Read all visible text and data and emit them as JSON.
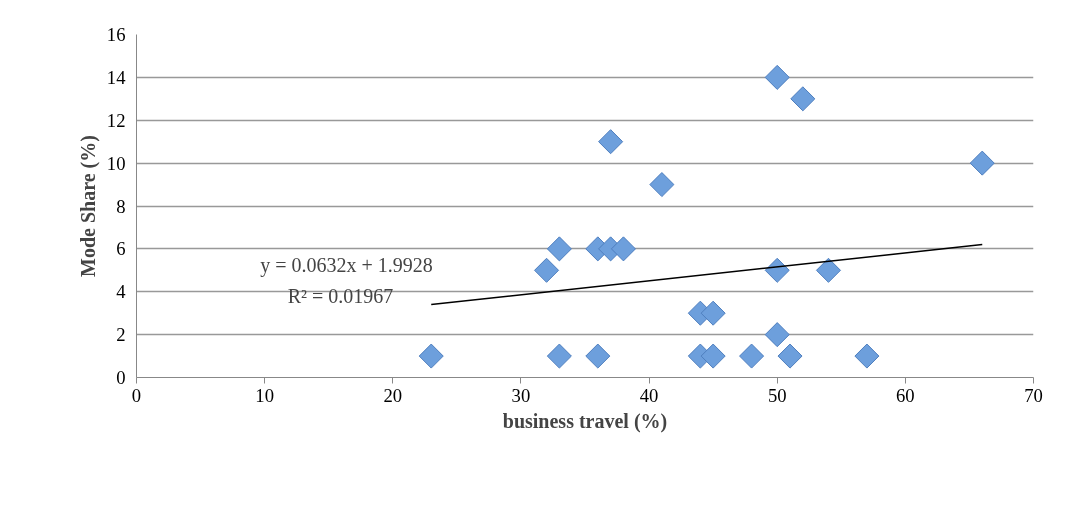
{
  "chart_data": {
    "type": "scatter",
    "xlabel": "business travel (%)",
    "ylabel": "Mode Share (%)",
    "xlim": [
      0,
      70
    ],
    "xticks": [
      0,
      10,
      20,
      30,
      40,
      50,
      60,
      70
    ],
    "ylim": [
      0,
      16
    ],
    "yticks": [
      0,
      2,
      4,
      6,
      8,
      10,
      12,
      14,
      16
    ],
    "grid": "y",
    "series": [
      {
        "color": "#6d9fdc",
        "marker": "diamond",
        "x": [
          23,
          33,
          36,
          44,
          45,
          48,
          51,
          57,
          44,
          45,
          50,
          50,
          54,
          32,
          33,
          36,
          37,
          38,
          37,
          41,
          50,
          52,
          66
        ],
        "values": [
          1,
          1,
          1,
          1,
          1,
          1,
          1,
          1,
          3,
          3,
          2,
          5,
          5,
          5,
          6,
          6,
          6,
          6,
          11,
          9,
          14,
          13,
          10
        ]
      },
      {
        "type": "line",
        "color": "#000000",
        "marker": "none",
        "x": [
          23,
          66
        ],
        "values": [
          3.4,
          6.2
        ]
      }
    ],
    "annotations": [
      "y = 0.0632x + 1.9928",
      "R² = 0.01967"
    ]
  }
}
